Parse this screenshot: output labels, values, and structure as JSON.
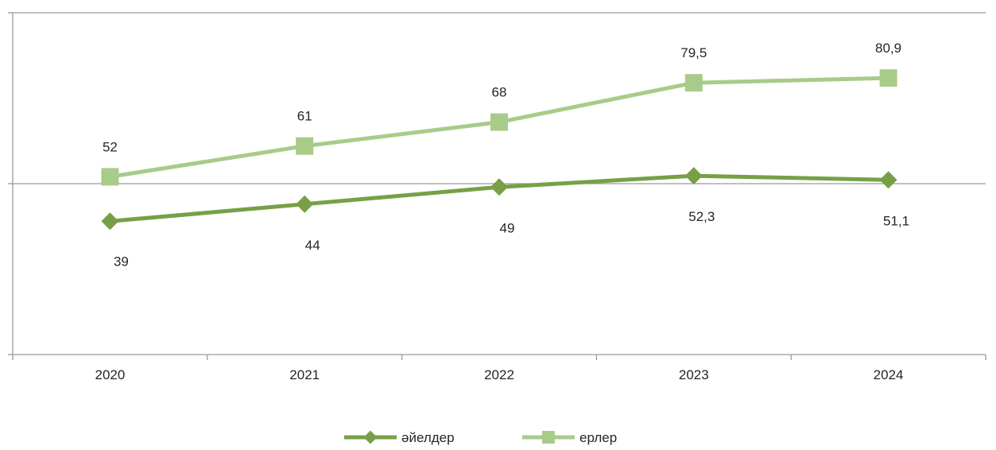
{
  "chart_data": {
    "type": "line",
    "categories": [
      "2020",
      "2021",
      "2022",
      "2023",
      "2024"
    ],
    "series": [
      {
        "name": "әйелдер",
        "values": [
          39,
          44,
          49,
          52.3,
          51.1
        ],
        "labels": [
          "39",
          "44",
          "49",
          "52,3",
          "51,1"
        ],
        "color": "#77a046",
        "marker": "diamond",
        "label_position": "below"
      },
      {
        "name": "ерлер",
        "values": [
          52,
          61,
          68,
          79.5,
          80.9
        ],
        "labels": [
          "52",
          "61",
          "68",
          "79,5",
          "80,9"
        ],
        "color": "#a9cb8a",
        "marker": "square",
        "label_position": "above"
      }
    ],
    "ylim": [
      0,
      100
    ],
    "y_gridlines": [
      50
    ],
    "title": "",
    "xlabel": "",
    "ylabel": "",
    "legend": "bottom"
  }
}
